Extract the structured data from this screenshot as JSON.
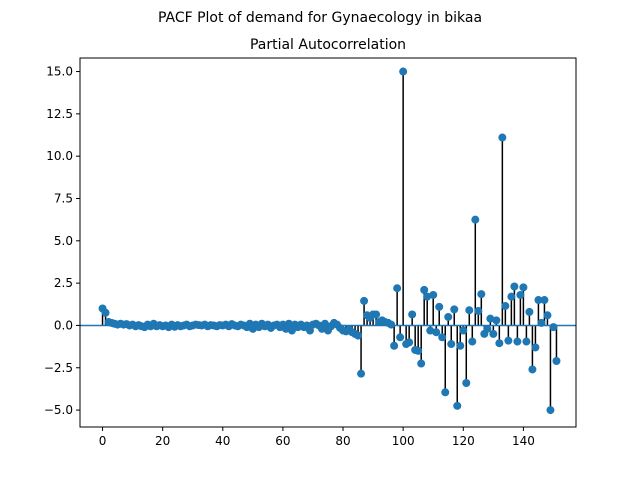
{
  "figure_title": "PACF Plot of demand for Gynaecology in bikaa",
  "chart_data": {
    "type": "scatter",
    "subtype": "stem",
    "title": "Partial Autocorrelation",
    "xlabel": "",
    "ylabel": "",
    "xlim": [
      -7.5,
      157.5
    ],
    "ylim": [
      -6.0,
      15.8
    ],
    "x_ticks": [
      0,
      20,
      40,
      60,
      80,
      100,
      120,
      140
    ],
    "x_tick_labels": [
      "0",
      "20",
      "40",
      "60",
      "80",
      "100",
      "120",
      "140"
    ],
    "y_ticks": [
      -5.0,
      -2.5,
      0.0,
      2.5,
      5.0,
      7.5,
      10.0,
      12.5,
      15.0
    ],
    "y_tick_labels": [
      "−5.0",
      "−2.5",
      "0.0",
      "2.5",
      "5.0",
      "7.5",
      "10.0",
      "12.5",
      "15.0"
    ],
    "grid": false,
    "colors": {
      "marker": "#1f77b4",
      "stem": "#000000",
      "baseline": "#1f77b4"
    },
    "x": [
      0,
      1,
      2,
      3,
      4,
      5,
      6,
      7,
      8,
      9,
      10,
      11,
      12,
      13,
      14,
      15,
      16,
      17,
      18,
      19,
      20,
      21,
      22,
      23,
      24,
      25,
      26,
      27,
      28,
      29,
      30,
      31,
      32,
      33,
      34,
      35,
      36,
      37,
      38,
      39,
      40,
      41,
      42,
      43,
      44,
      45,
      46,
      47,
      48,
      49,
      50,
      51,
      52,
      53,
      54,
      55,
      56,
      57,
      58,
      59,
      60,
      61,
      62,
      63,
      64,
      65,
      66,
      67,
      68,
      69,
      70,
      71,
      72,
      73,
      74,
      75,
      76,
      77,
      78,
      79,
      80,
      81,
      82,
      83,
      84,
      85,
      86,
      87,
      88,
      89,
      90,
      91,
      92,
      93,
      94,
      95,
      96,
      97,
      98,
      99,
      100,
      101,
      102,
      103,
      104,
      105,
      106,
      107,
      108,
      109,
      110,
      111,
      112,
      113,
      114,
      115,
      116,
      117,
      118,
      119,
      120,
      121,
      122,
      123,
      124,
      125,
      126,
      127,
      128,
      129,
      130,
      131,
      132,
      133,
      134,
      135,
      136,
      137,
      138,
      139,
      140,
      141,
      142,
      143,
      144,
      145,
      146,
      147,
      148,
      149,
      150,
      151
    ],
    "values": [
      1.0,
      0.75,
      0.2,
      0.15,
      0.1,
      0.05,
      0.1,
      0.05,
      0.08,
      0.0,
      0.05,
      -0.05,
      0.02,
      -0.05,
      -0.1,
      0.05,
      -0.05,
      0.1,
      -0.05,
      0.02,
      -0.05,
      0.0,
      -0.1,
      0.05,
      -0.08,
      0.02,
      -0.05,
      0.0,
      0.05,
      -0.05,
      0.0,
      0.05,
      0.02,
      0.0,
      0.05,
      -0.05,
      0.02,
      0.0,
      -0.05,
      0.02,
      0.0,
      0.05,
      -0.05,
      0.08,
      0.0,
      -0.05,
      0.05,
      0.0,
      -0.1,
      0.1,
      -0.2,
      0.05,
      -0.1,
      0.1,
      -0.05,
      0.05,
      -0.15,
      0.0,
      0.05,
      -0.1,
      0.05,
      -0.2,
      0.1,
      -0.3,
      0.05,
      -0.1,
      0.05,
      -0.1,
      0.0,
      -0.3,
      0.05,
      0.1,
      0.0,
      -0.2,
      0.1,
      -0.3,
      -0.05,
      0.15,
      0.05,
      -0.15,
      -0.3,
      -0.35,
      -0.25,
      -0.4,
      -0.5,
      -0.6,
      -2.85,
      1.45,
      0.6,
      0.45,
      0.65,
      0.65,
      0.2,
      0.3,
      0.2,
      0.15,
      0.05,
      -1.2,
      2.2,
      -0.7,
      15.0,
      -1.1,
      -1.0,
      0.65,
      -1.45,
      -1.5,
      -2.25,
      2.1,
      1.7,
      -0.3,
      1.8,
      -0.4,
      1.1,
      -0.7,
      -3.95,
      0.5,
      -1.1,
      0.95,
      -4.75,
      -1.2,
      -0.3,
      -3.4,
      0.9,
      -0.95,
      6.25,
      0.85,
      1.85,
      -0.5,
      -0.2,
      0.4,
      -0.5,
      0.3,
      -1.05,
      11.1,
      1.15,
      -0.9,
      1.7,
      2.3,
      -0.95,
      1.8,
      2.25,
      -0.95,
      0.8,
      -2.6,
      -1.3,
      1.5,
      0.15,
      1.5,
      0.6,
      -5.0,
      -0.1,
      -2.1
    ]
  }
}
